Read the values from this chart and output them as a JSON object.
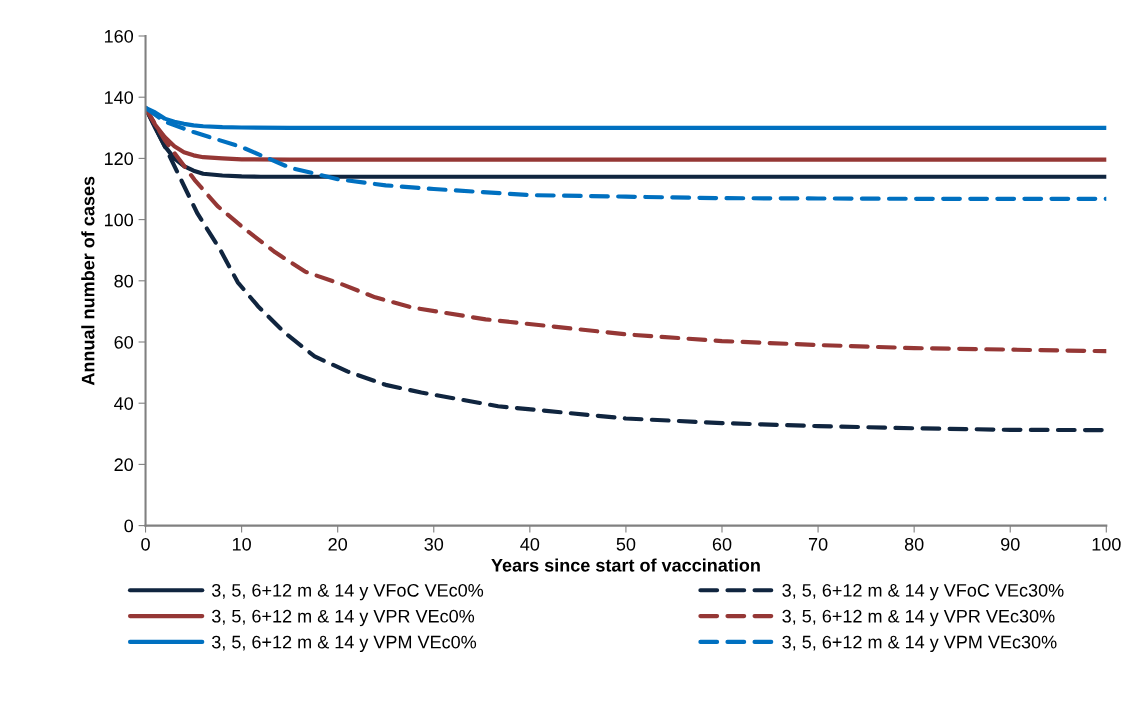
{
  "chart_data": {
    "type": "line",
    "xlabel": "Years since start of vaccination",
    "ylabel": "Annual number of cases",
    "xlim": [
      0,
      100
    ],
    "xticks": [
      0,
      10,
      20,
      30,
      40,
      50,
      60,
      70,
      80,
      90,
      100
    ],
    "ylim": [
      0,
      160
    ],
    "yticks": [
      0,
      20,
      40,
      60,
      80,
      100,
      120,
      140,
      160
    ],
    "grid": false,
    "legend": "bottom",
    "marker": "none",
    "series": [
      {
        "name": "3, 5, 6+12 m & 14 y VFoC VEc0%",
        "color": "#10253f",
        "line_style": "solid",
        "x": [
          0,
          1,
          2,
          3,
          4,
          5,
          6,
          8,
          10,
          12,
          15,
          20,
          30,
          50,
          100
        ],
        "values": [
          136.5,
          130,
          124,
          120,
          117.5,
          116,
          115,
          114.4,
          114.1,
          114,
          114,
          114,
          114,
          114,
          114
        ]
      },
      {
        "name": "3, 5, 6+12 m & 14 y VFoC VEc30%",
        "color": "#10253f",
        "line_style": "dashed",
        "x": [
          0,
          2,
          5.4,
          7.8,
          9.6,
          11.7,
          14.5,
          17.6,
          21,
          25,
          28.7,
          36.7,
          50,
          60,
          70,
          80,
          90,
          100
        ],
        "values": [
          136.5,
          124,
          102,
          90,
          79.5,
          71.7,
          63,
          55.3,
          50.4,
          46,
          43.5,
          39,
          35,
          33.5,
          32.5,
          31.8,
          31.3,
          31.2
        ]
      },
      {
        "name": "3, 5, 6+12 m & 14 y VPR VEc0%",
        "color": "#953735",
        "line_style": "solid",
        "x": [
          0,
          1,
          2,
          3,
          4,
          5,
          6,
          8,
          10,
          15,
          30,
          50,
          100
        ],
        "values": [
          136.5,
          131,
          127,
          124,
          122,
          121,
          120.4,
          120,
          119.7,
          119.6,
          119.6,
          119.6,
          119.6
        ]
      },
      {
        "name": "3, 5, 6+12 m & 14 y VPR VEc30%",
        "color": "#953735",
        "line_style": "dashed",
        "x": [
          0,
          2,
          5.1,
          7.5,
          10.3,
          13.5,
          16.6,
          20.4,
          23.9,
          27.7,
          35.4,
          50,
          60,
          70,
          80,
          90,
          100
        ],
        "values": [
          136.5,
          126,
          113,
          104.4,
          97,
          89.3,
          83,
          78.9,
          74.6,
          71.3,
          67.4,
          62.5,
          60.3,
          59,
          58,
          57.5,
          57
        ]
      },
      {
        "name": "3, 5, 6+12 m & 14 y VPM VEc0%",
        "color": "#0070c0",
        "line_style": "solid",
        "x": [
          0,
          1,
          2,
          3,
          4,
          5,
          6,
          8,
          10,
          15,
          30,
          50,
          100
        ],
        "values": [
          136.5,
          135,
          133,
          132,
          131.3,
          130.8,
          130.5,
          130.2,
          130.1,
          130,
          130,
          130,
          130
        ]
      },
      {
        "name": "3, 5, 6+12 m & 14 y VPM VEc30%",
        "color": "#0070c0",
        "line_style": "dashed",
        "x": [
          0,
          2,
          5,
          10,
          15,
          20,
          25,
          30,
          40,
          50,
          60,
          70,
          80,
          90,
          100
        ],
        "values": [
          136.5,
          132,
          128.6,
          123.7,
          117,
          113.2,
          111.2,
          110,
          108,
          107.5,
          107,
          106.9,
          106.8,
          106.8,
          106.8
        ]
      }
    ]
  }
}
